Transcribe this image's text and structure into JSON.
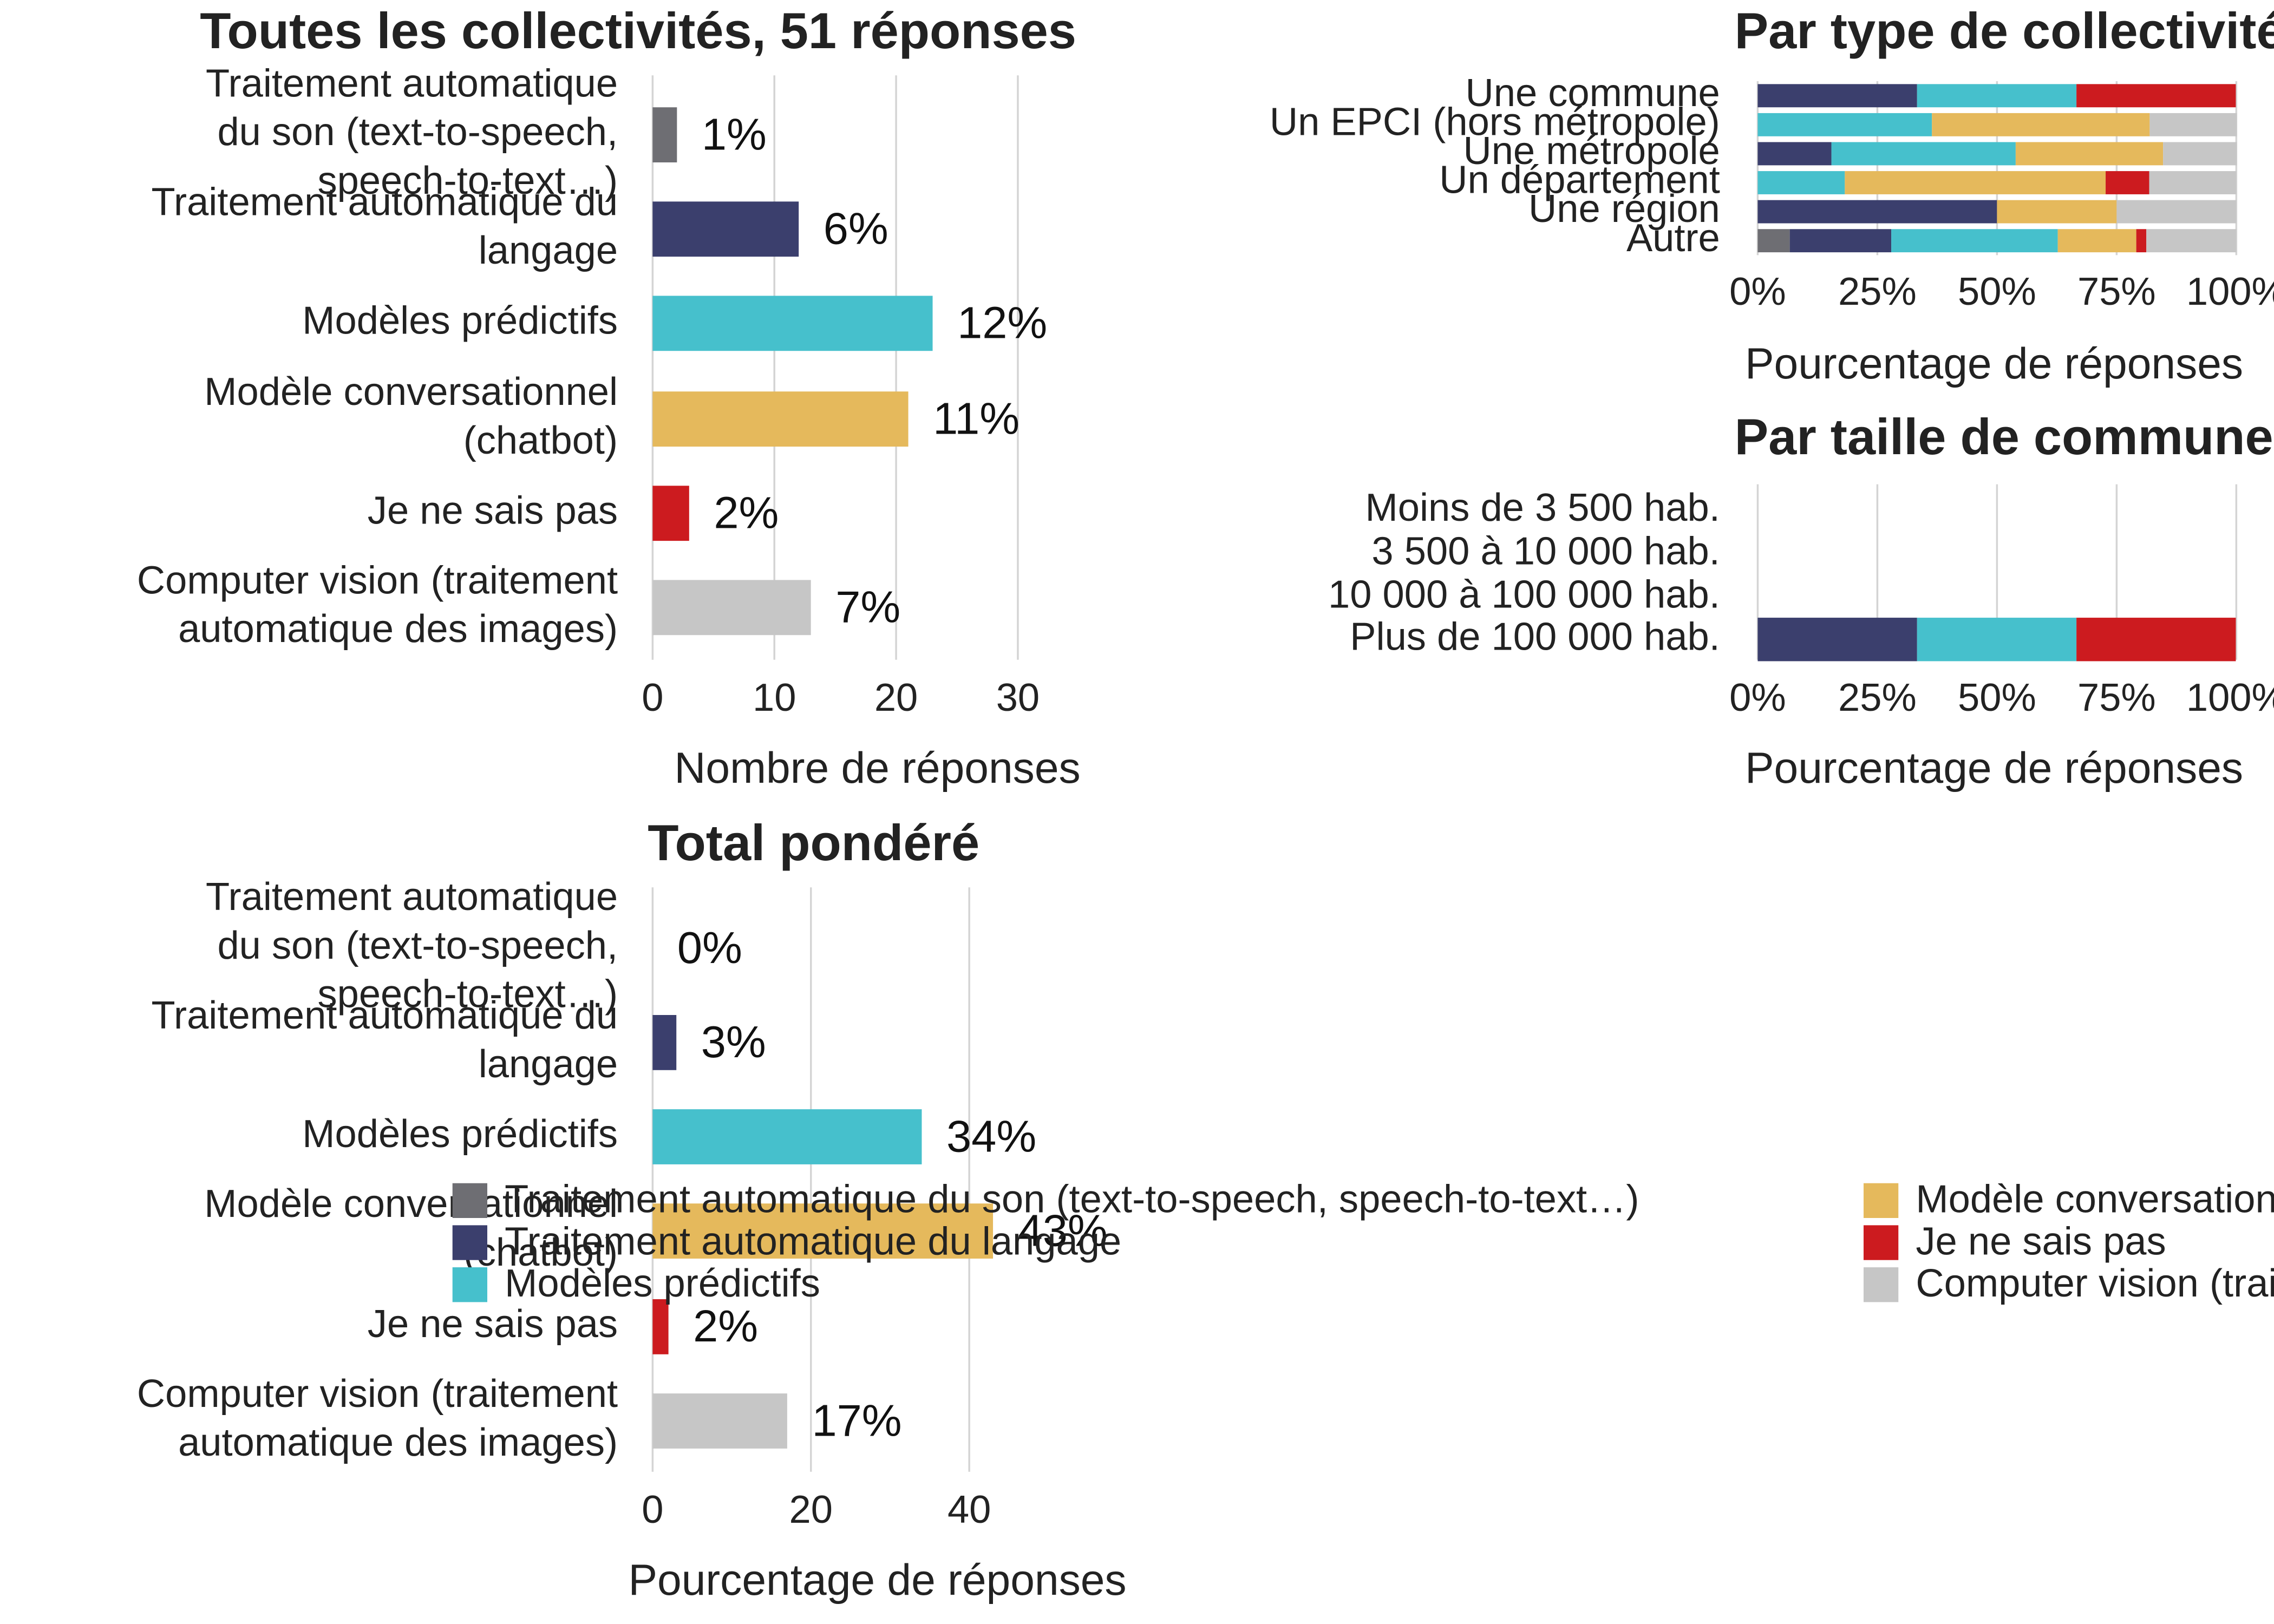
{
  "chart_data": [
    {
      "type": "bar",
      "orientation": "horizontal",
      "title": "Toutes les collectivités, 51 réponses",
      "categories": [
        "Traitement automatique\ndu son (text-to-speech,\nspeech-to-text…)",
        "Traitement automatique du\nlangage",
        "Modèles prédictifs",
        "Modèle conversationnel\n(chatbot)",
        "Je ne sais pas",
        "Computer vision (traitement\nautomatique des images)"
      ],
      "values": [
        2,
        12,
        23,
        21,
        3,
        13
      ],
      "bar_annotations": [
        "1%",
        "6%",
        "12%",
        "11%",
        "2%",
        "7%"
      ],
      "colors": [
        "#6e6e73",
        "#3b3f6d",
        "#46c0cc",
        "#e5b95c",
        "#cc1b1f",
        "#c6c6c6"
      ],
      "xlabel": "Nombre de réponses",
      "xlim": [
        0,
        38
      ],
      "xticks": [
        0,
        10,
        20,
        30
      ],
      "grid": true
    },
    {
      "type": "bar",
      "orientation": "horizontal",
      "title": "Total pondéré",
      "categories": [
        "Traitement automatique\ndu son (text-to-speech,\nspeech-to-text…)",
        "Traitement automatique du\nlangage",
        "Modèles prédictifs",
        "Modèle conversationnel\n(chatbot)",
        "Je ne sais pas",
        "Computer vision (traitement\nautomatique des images)"
      ],
      "values": [
        0,
        3,
        34,
        43,
        2,
        17
      ],
      "value_labels": [
        "0%",
        "3%",
        "34%",
        "43%",
        "2%",
        "17%"
      ],
      "colors": [
        "#6e6e73",
        "#3b3f6d",
        "#46c0cc",
        "#e5b95c",
        "#cc1b1f",
        "#c6c6c6"
      ],
      "xlabel": "Pourcentage de réponses",
      "xlim": [
        0,
        48
      ],
      "xticks": [
        0,
        20,
        40
      ],
      "grid": true
    },
    {
      "type": "stacked_bar",
      "orientation": "horizontal",
      "title": "Par type de collectivité",
      "categories": [
        "Une commune",
        "Un EPCI (hors métropole)",
        "Une métropole",
        "Un département",
        "Une région",
        "Autre"
      ],
      "series": [
        {
          "name": "Traitement automatique du son (text-to-speech, speech-to-text…)",
          "color": "#6e6e73",
          "values": [
            0,
            0,
            0,
            0,
            0,
            6.7
          ]
        },
        {
          "name": "Traitement automatique du langage",
          "color": "#3b3f6d",
          "values": [
            33.3,
            0,
            15.4,
            0,
            50,
            21.2
          ]
        },
        {
          "name": "Modèles prédictifs",
          "color": "#46c0cc",
          "values": [
            33.3,
            36.4,
            38.5,
            18.2,
            0,
            34.8
          ]
        },
        {
          "name": "Modèle conversationnel (chatbot)",
          "color": "#e5b95c",
          "values": [
            0,
            45.5,
            30.8,
            54.5,
            25,
            16.4
          ]
        },
        {
          "name": "Je ne sais pas",
          "color": "#cc1b1f",
          "values": [
            33.3,
            0,
            0,
            9.1,
            0,
            2.1
          ]
        },
        {
          "name": "Computer vision (traitement automatique des images)",
          "color": "#c6c6c6",
          "values": [
            0,
            18.2,
            15.4,
            18.2,
            25,
            18.8
          ]
        }
      ],
      "xlabel": "Pourcentage de réponses",
      "xlim": [
        0,
        100
      ],
      "xticks": [
        {
          "value": 0,
          "label": "0%"
        },
        {
          "value": 25,
          "label": "25%"
        },
        {
          "value": 50,
          "label": "50%"
        },
        {
          "value": 75,
          "label": "75%"
        },
        {
          "value": 100,
          "label": "100%"
        }
      ],
      "grid": true,
      "legend": "bottom"
    },
    {
      "type": "stacked_bar",
      "orientation": "horizontal",
      "title": "Par taille de commune",
      "categories": [
        "Moins de 3 500 hab.",
        "3 500 à 10 000 hab.",
        "10 000 à 100 000 hab.",
        "Plus de 100 000 hab."
      ],
      "series": [
        {
          "color": "#3b3f6d",
          "values": [
            null,
            null,
            null,
            33.3
          ]
        },
        {
          "color": "#46c0cc",
          "values": [
            null,
            null,
            null,
            33.3
          ]
        },
        {
          "color": "#cc1b1f",
          "values": [
            null,
            null,
            null,
            33.3
          ]
        }
      ],
      "xlabel": "Pourcentage de réponses",
      "xlim": [
        0,
        100
      ],
      "xticks": [
        {
          "value": 0,
          "label": "0%"
        },
        {
          "value": 25,
          "label": "25%"
        },
        {
          "value": 50,
          "label": "50%"
        },
        {
          "value": 75,
          "label": "75%"
        },
        {
          "value": 100,
          "label": "100%"
        }
      ],
      "grid": true
    }
  ]
}
